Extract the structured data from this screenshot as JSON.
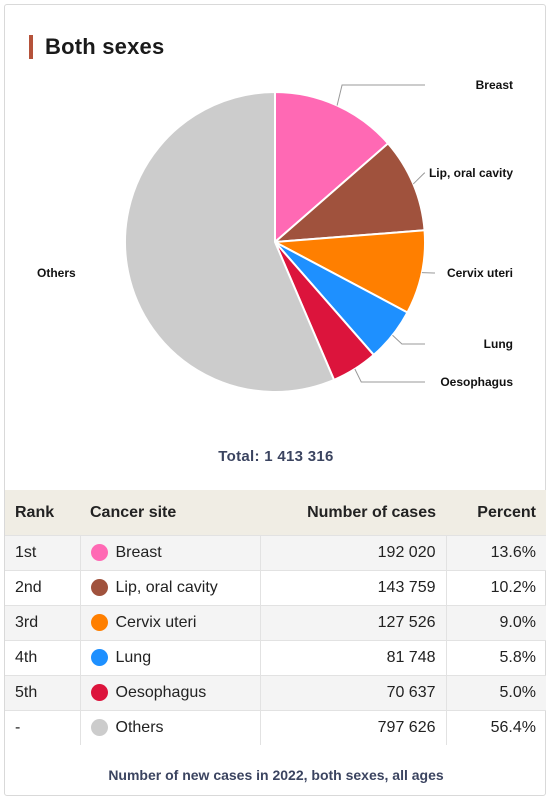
{
  "heading": "Both sexes",
  "total_label": "Total: 1 413 316",
  "footer": "Number of new cases in 2022, both sexes, all ages",
  "table": {
    "headers": [
      "Rank",
      "Cancer site",
      "Number of cases",
      "Percent"
    ],
    "rows": [
      {
        "rank": "1st",
        "site": "Breast",
        "cases": "192 020",
        "percent": "13.6%",
        "color": "#ff69b4"
      },
      {
        "rank": "2nd",
        "site": "Lip, oral cavity",
        "cases": "143 759",
        "percent": "10.2%",
        "color": "#a0523d"
      },
      {
        "rank": "3rd",
        "site": "Cervix uteri",
        "cases": "127 526",
        "percent": "9.0%",
        "color": "#ff7f00"
      },
      {
        "rank": "4th",
        "site": "Lung",
        "cases": "81 748",
        "percent": "5.8%",
        "color": "#1e90ff"
      },
      {
        "rank": "5th",
        "site": "Oesophagus",
        "cases": "70 637",
        "percent": "5.0%",
        "color": "#dc143c"
      },
      {
        "rank": "-",
        "site": "Others",
        "cases": "797 626",
        "percent": "56.4%",
        "color": "#cccccc"
      }
    ]
  },
  "chart_data": {
    "type": "pie",
    "categories": [
      "Breast",
      "Lip, oral cavity",
      "Cervix uteri",
      "Lung",
      "Oesophagus",
      "Others"
    ],
    "values": [
      192020,
      143759,
      127526,
      81748,
      70637,
      797626
    ],
    "colors": [
      "#ff69b4",
      "#a0523d",
      "#ff7f00",
      "#1e90ff",
      "#dc143c",
      "#cccccc"
    ],
    "total": 1413316
  }
}
